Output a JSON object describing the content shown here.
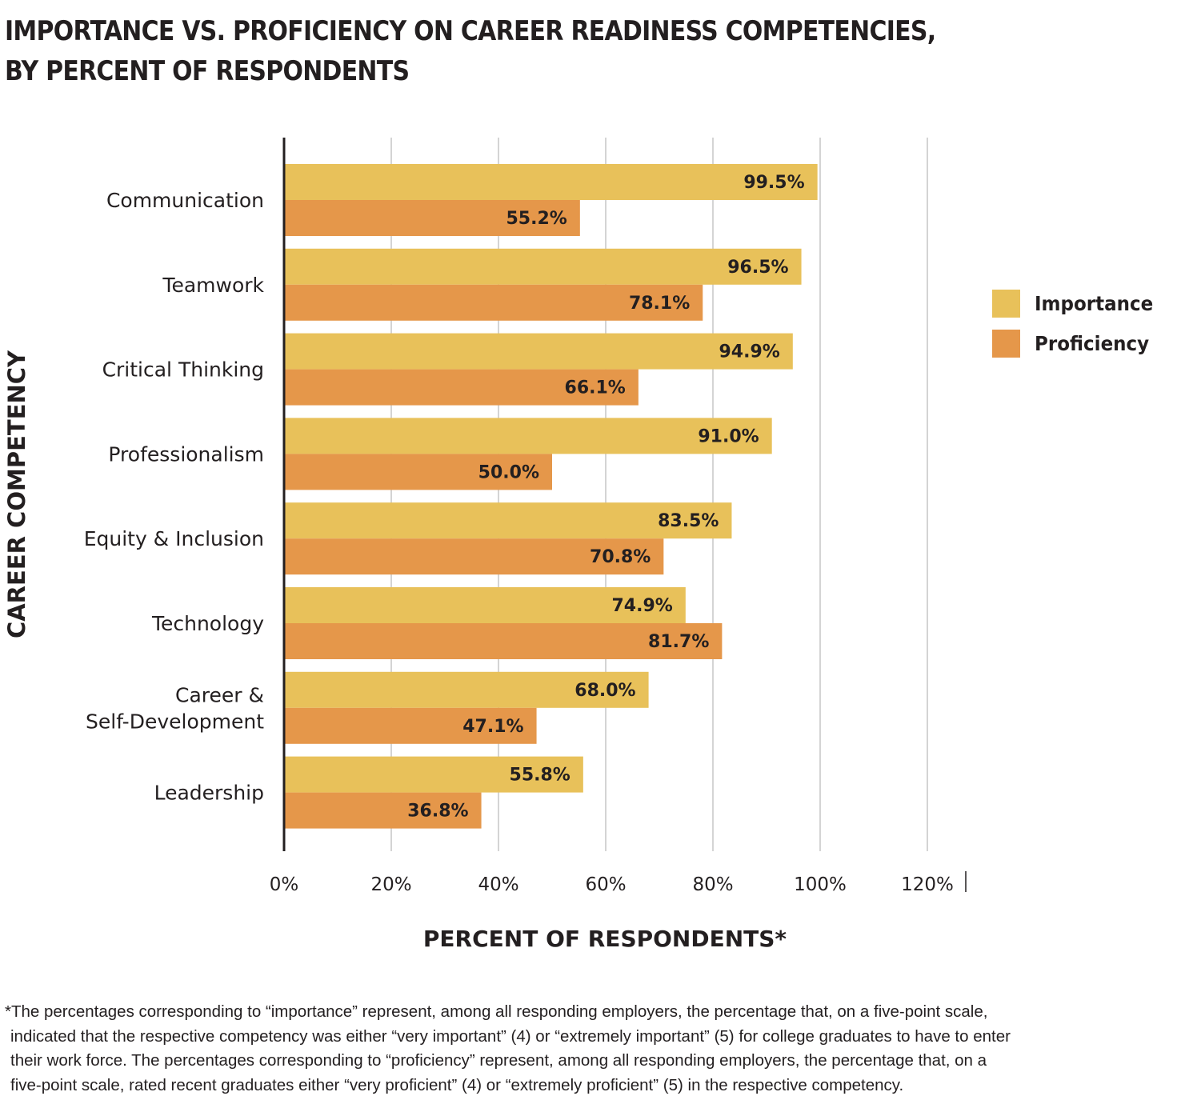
{
  "title_lines": [
    "IMPORTANCE VS. PROFICIENCY ON CAREER READINESS COMPETENCIES,",
    "BY PERCENT OF RESPONDENTS"
  ],
  "legend": [
    {
      "label": "Importance",
      "color": "#e8c15a"
    },
    {
      "label": "Proficiency",
      "color": "#e5974a"
    }
  ],
  "chart_data": {
    "type": "bar",
    "orientation": "horizontal",
    "categories": [
      "Communication",
      "Teamwork",
      "Critical Thinking",
      "Professionalism",
      "Equity & Inclusion",
      "Technology",
      "Career & Self-Development",
      "Leadership"
    ],
    "category_lines": [
      [
        "Communication"
      ],
      [
        "Teamwork"
      ],
      [
        "Critical Thinking"
      ],
      [
        "Professionalism"
      ],
      [
        "Equity & Inclusion"
      ],
      [
        "Technology"
      ],
      [
        "Career &",
        "Self-Development"
      ],
      [
        "Leadership"
      ]
    ],
    "series": [
      {
        "name": "Importance",
        "color": "#e8c15a",
        "values": [
          99.5,
          96.5,
          94.9,
          91.0,
          83.5,
          74.9,
          68.0,
          55.8
        ],
        "labels": [
          "99.5%",
          "96.5%",
          "94.9%",
          "91.0%",
          "83.5%",
          "74.9%",
          "68.0%",
          "55.8%"
        ]
      },
      {
        "name": "Proficiency",
        "color": "#e5974a",
        "values": [
          55.2,
          78.1,
          66.1,
          50.0,
          70.8,
          81.7,
          47.1,
          36.8
        ],
        "labels": [
          "55.2%",
          "78.1%",
          "66.1%",
          "50.0%",
          "70.8%",
          "81.7%",
          "47.1%",
          "36.8%"
        ]
      }
    ],
    "xticks": [
      0,
      20,
      40,
      60,
      80,
      100,
      120
    ],
    "xtick_labels": [
      "0%",
      "20%",
      "40%",
      "60%",
      "80%",
      "100%",
      "120%"
    ],
    "xlim": [
      0,
      120
    ],
    "xlabel": "PERCENT OF RESPONDENTS*",
    "ylabel": "CAREER COMPETENCY",
    "grid": true,
    "legend_position": "right"
  },
  "footnote_lines": [
    "*The percentages corresponding to “importance” represent, among all responding employers, the percentage that, on a five-point scale,",
    "indicated that the respective competency was either “very important” (4) or “extremely important” (5) for college graduates to have to enter",
    "their work force. The percentages corresponding to “proficiency” represent, among all responding employers, the percentage that, on a",
    "five-point scale, rated recent graduates either “very proficient” (4) or “extremely proficient” (5) in the respective competency."
  ]
}
